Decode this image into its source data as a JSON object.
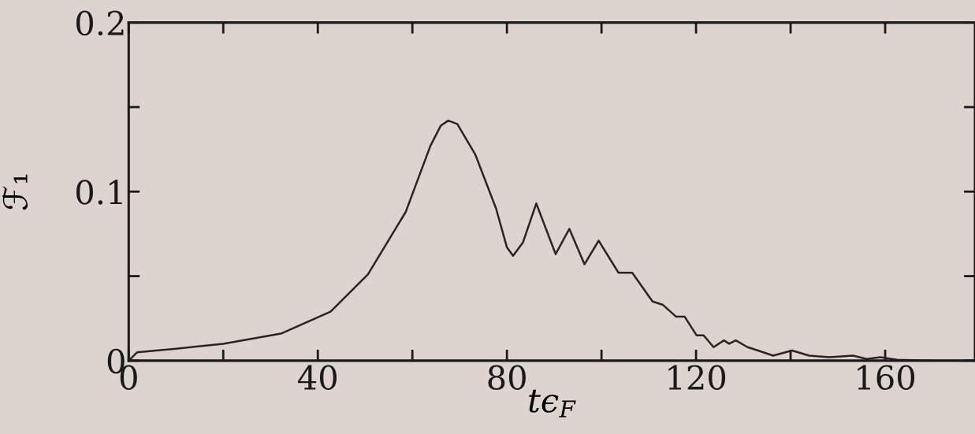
{
  "chart_data": {
    "type": "line",
    "xlabel": "tϵ$_{F}$",
    "ylabel": "ℱ₁",
    "xlim": [
      0,
      179
    ],
    "ylim": [
      0,
      0.2
    ],
    "xticks": [
      0,
      {
        "value": 20,
        "label": null
      },
      40,
      {
        "value": 60,
        "label": null
      },
      80,
      {
        "value": 100,
        "label": null
      },
      120,
      {
        "value": 140,
        "label": null
      },
      160
    ],
    "yticks": [
      0,
      {
        "value": 0.05,
        "label": null
      },
      0.1,
      {
        "value": 0.15,
        "label": null
      },
      0.2
    ],
    "x": [
      0,
      1.8,
      10,
      20,
      32.2,
      42.7,
      50.6,
      58.6,
      63.8,
      66,
      67.6,
      69.5,
      73.3,
      77.7,
      80,
      81.3,
      83.4,
      86.2,
      90.3,
      93.2,
      96.4,
      99.4,
      103.6,
      106.5,
      110.8,
      113,
      115.8,
      117.6,
      120.1,
      121.6,
      123.7,
      125.9,
      127,
      128.4,
      130.9,
      133.1,
      136.3,
      140.3,
      143.9,
      148.2,
      153.2,
      156.1,
      159,
      162.5,
      170,
      179
    ],
    "series": [
      {
        "color": "#2a2424",
        "values": [
          0,
          0.005,
          0.007,
          0.01,
          0.016,
          0.029,
          0.051,
          0.088,
          0.127,
          0.139,
          0.142,
          0.14,
          0.122,
          0.09,
          0.067,
          0.062,
          0.07,
          0.093,
          0.063,
          0.078,
          0.057,
          0.071,
          0.052,
          0.052,
          0.035,
          0.033,
          0.026,
          0.026,
          0.015,
          0.015,
          0.008,
          0.012,
          0.01,
          0.012,
          0.008,
          0.006,
          0.003,
          0.006,
          0.003,
          0.002,
          0.003,
          0.001,
          0.002,
          0.0005,
          0,
          0
        ]
      }
    ]
  }
}
